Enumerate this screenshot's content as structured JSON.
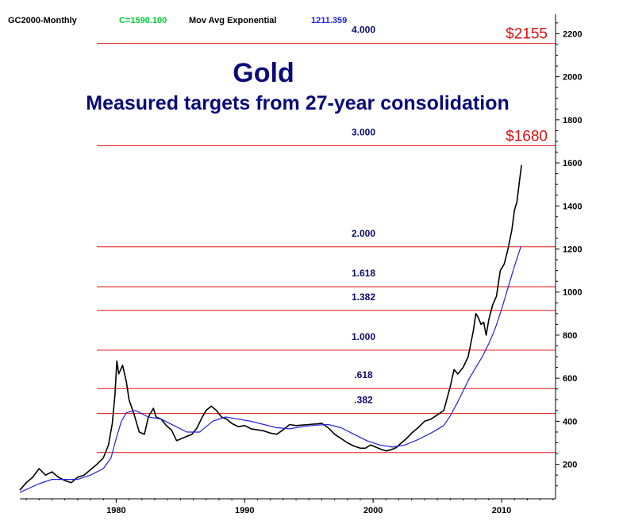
{
  "header": {
    "symbol": "GC2000-Monthly",
    "close_label": "C=1590.100",
    "indicator": "Mov Avg Exponential",
    "indicator_value": "1211.359"
  },
  "colors": {
    "close": "#00cc33",
    "indicator": "#2222dd",
    "levels": "#e01010",
    "price": "#000000",
    "title": "#0a0a7a"
  },
  "chart_data": {
    "type": "line",
    "title": "Gold",
    "subtitle": "Measured targets from 27-year consolidation",
    "xlabel": "",
    "ylabel": "",
    "xlim": [
      1972.5,
      2014.2
    ],
    "ylim": [
      40,
      2290
    ],
    "x_ticks": [
      1980,
      1990,
      2000,
      2010
    ],
    "y_ticks": [
      200,
      400,
      600,
      800,
      1000,
      1200,
      1400,
      1600,
      1800,
      2000,
      2200
    ],
    "grid": false,
    "y_axis_position": "right",
    "levels": [
      {
        "label": ".382",
        "value": 436
      },
      {
        "label": ".618",
        "value": 552
      },
      {
        "label": "1.000",
        "value": 730
      },
      {
        "label": "1.382",
        "value": 915
      },
      {
        "label": "1.618",
        "value": 1025
      },
      {
        "label": "2.000",
        "value": 1210
      },
      {
        "label": "3.000",
        "value": 1680
      },
      {
        "label": "4.000",
        "value": 2155
      }
    ],
    "baseline_level": 255,
    "target_labels": [
      {
        "text": "$1680",
        "value": 1680
      },
      {
        "text": "$2155",
        "value": 2155
      }
    ],
    "series": [
      {
        "type": "price",
        "x": [
          1972.5,
          1973.0,
          1973.5,
          1974.0,
          1974.5,
          1975.0,
          1975.5,
          1976.0,
          1976.5,
          1977.0,
          1977.5,
          1978.0,
          1978.5,
          1979.0,
          1979.4,
          1979.7,
          1979.9,
          1980.05,
          1980.2,
          1980.5,
          1980.8,
          1981.0,
          1981.4,
          1981.8,
          1982.2,
          1982.5,
          1982.9,
          1983.1,
          1983.5,
          1983.9,
          1984.3,
          1984.7,
          1985.1,
          1985.5,
          1985.9,
          1986.3,
          1986.7,
          1987.0,
          1987.4,
          1987.8,
          1988.2,
          1988.6,
          1989.0,
          1989.5,
          1990.0,
          1990.5,
          1991.0,
          1991.5,
          1992.0,
          1992.5,
          1993.0,
          1993.5,
          1994.0,
          1995.0,
          1996.0,
          1996.5,
          1997.0,
          1997.5,
          1998.0,
          1998.5,
          1999.0,
          1999.4,
          1999.8,
          2000.2,
          2000.6,
          2001.0,
          2001.4,
          2001.8,
          2002.2,
          2002.6,
          2003.0,
          2003.5,
          2004.0,
          2004.5,
          2005.0,
          2005.5,
          2006.0,
          2006.3,
          2006.6,
          2007.0,
          2007.4,
          2007.8,
          2008.0,
          2008.2,
          2008.4,
          2008.6,
          2008.8,
          2009.0,
          2009.3,
          2009.6,
          2009.9,
          2010.2,
          2010.5,
          2010.8,
          2011.0,
          2011.2,
          2011.4,
          2011.55
        ],
        "values": [
          80,
          115,
          140,
          180,
          150,
          165,
          140,
          125,
          115,
          140,
          150,
          175,
          200,
          230,
          290,
          390,
          520,
          680,
          620,
          660,
          580,
          500,
          430,
          350,
          340,
          420,
          460,
          420,
          410,
          380,
          360,
          310,
          320,
          330,
          340,
          370,
          420,
          450,
          470,
          450,
          420,
          410,
          390,
          375,
          380,
          365,
          360,
          355,
          345,
          340,
          360,
          385,
          380,
          385,
          390,
          370,
          340,
          320,
          300,
          285,
          275,
          275,
          290,
          280,
          270,
          262,
          268,
          278,
          300,
          320,
          345,
          370,
          400,
          410,
          430,
          450,
          560,
          640,
          620,
          650,
          700,
          820,
          900,
          880,
          850,
          860,
          800,
          870,
          940,
          980,
          1100,
          1130,
          1200,
          1290,
          1380,
          1420,
          1520,
          1590
        ]
      },
      {
        "type": "ema",
        "x": [
          1972.5,
          1974.0,
          1975.0,
          1976.0,
          1977.0,
          1978.0,
          1979.0,
          1979.6,
          1980.0,
          1980.4,
          1980.8,
          1981.5,
          1982.5,
          1983.5,
          1984.5,
          1985.5,
          1986.5,
          1987.5,
          1988.5,
          1989.5,
          1990.5,
          1991.5,
          1992.5,
          1993.5,
          1994.5,
          1995.5,
          1996.5,
          1997.5,
          1998.5,
          1999.5,
          2000.5,
          2001.5,
          2002.5,
          2003.5,
          2004.5,
          2005.5,
          2006.0,
          2006.5,
          2007.0,
          2007.5,
          2008.0,
          2008.5,
          2009.0,
          2009.5,
          2010.0,
          2010.5,
          2011.0,
          2011.5
        ],
        "values": [
          70,
          110,
          130,
          130,
          130,
          150,
          180,
          230,
          320,
          400,
          440,
          450,
          420,
          410,
          380,
          350,
          350,
          400,
          420,
          410,
          400,
          385,
          370,
          365,
          375,
          382,
          385,
          370,
          340,
          310,
          290,
          280,
          290,
          315,
          345,
          380,
          425,
          480,
          540,
          600,
          650,
          700,
          760,
          830,
          920,
          1020,
          1120,
          1211
        ]
      }
    ]
  }
}
